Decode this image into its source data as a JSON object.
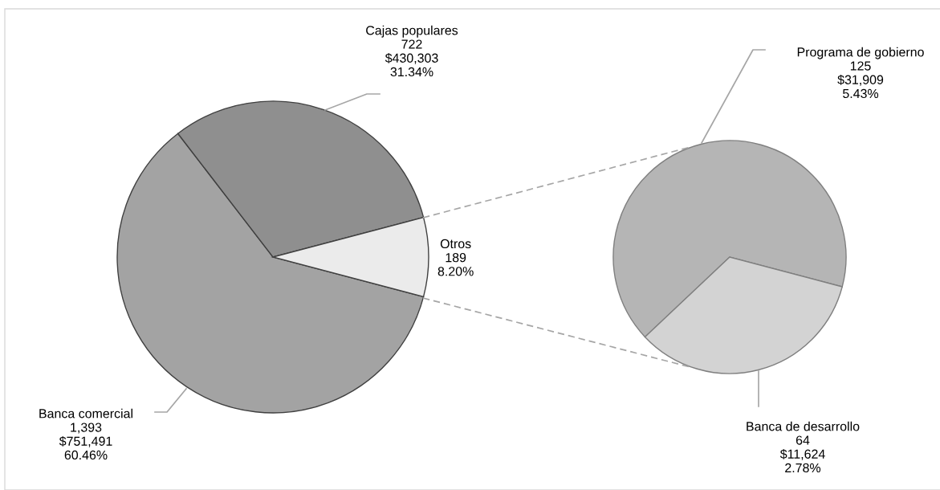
{
  "chart_data": [
    {
      "type": "pie",
      "categories": [
        "Banca comercial",
        "Cajas populares",
        "Otros"
      ],
      "values": [
        60.46,
        31.34,
        8.2
      ],
      "colors": [
        "#a3a3a3",
        "#8f8f8f",
        "#ebebeb"
      ],
      "value_labels": [
        "1,393\n$751,491\n60.46%",
        "722\n$430,303\n31.34%",
        "189\n8.20%"
      ]
    },
    {
      "type": "pie",
      "categories": [
        "Programa de gobierno",
        "Banca de desarrollo"
      ],
      "values": [
        5.43,
        2.78
      ],
      "colors": [
        "#b5b5b5",
        "#d3d3d3"
      ],
      "value_labels": [
        "125\n$31,909\n5.43%",
        "64\n$11,624\n2.78%"
      ]
    }
  ]
}
